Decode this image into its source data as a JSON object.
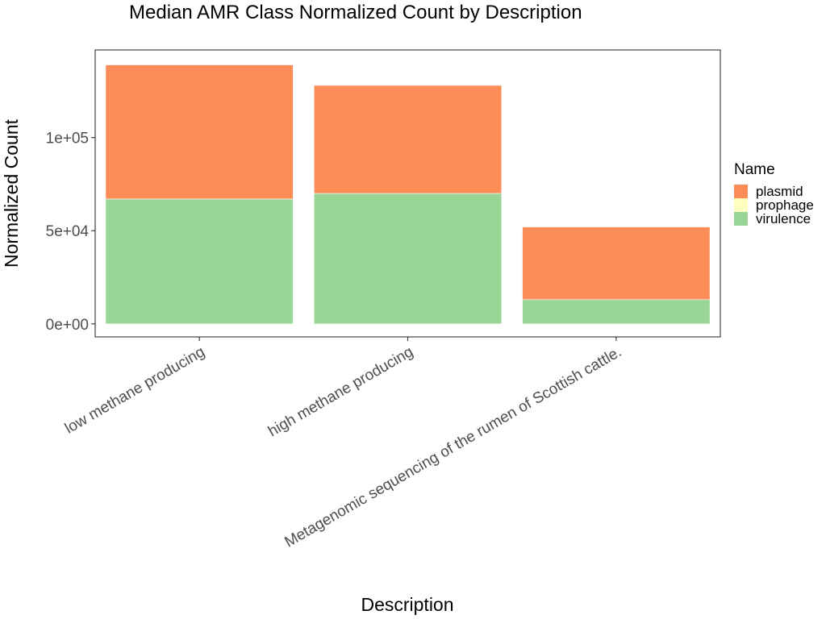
{
  "chart_data": {
    "type": "bar",
    "stacked": true,
    "title": "Median AMR Class Normalized Count by Description",
    "xlabel": "Description",
    "ylabel": "Normalized Count",
    "categories": [
      "low methane producing",
      "high methane producing",
      "Metagenomic sequencing of the rumen of Scottish cattle."
    ],
    "series": [
      {
        "name": "virulence",
        "color": "#99d594",
        "values": [
          67000,
          70000,
          13000
        ]
      },
      {
        "name": "prophage",
        "color": "#ffffbf",
        "values": [
          0,
          0,
          0
        ]
      },
      {
        "name": "plasmid",
        "color": "#fc8d59",
        "values": [
          72000,
          58000,
          39000
        ]
      }
    ],
    "ylim": [
      -7000,
      147000
    ],
    "yticks": [
      0,
      50000,
      100000
    ],
    "ytick_labels": [
      "0e+00",
      "5e+04",
      "1e+05"
    ],
    "grid": false,
    "legend": {
      "title": "Name",
      "position": "right",
      "entries": [
        "plasmid",
        "prophage",
        "virulence"
      ]
    }
  }
}
